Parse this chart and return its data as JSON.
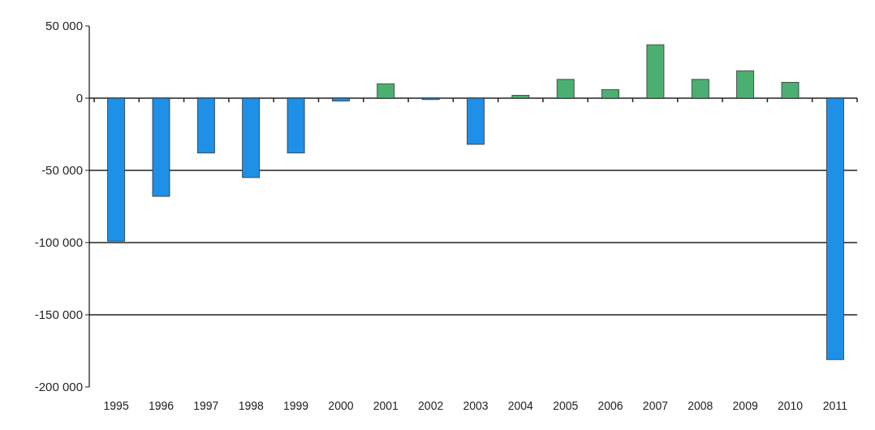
{
  "chart_data": {
    "type": "bar",
    "categories": [
      "1995",
      "1996",
      "1997",
      "1998",
      "1999",
      "2000",
      "2001",
      "2002",
      "2003",
      "2004",
      "2005",
      "2006",
      "2007",
      "2008",
      "2009",
      "2010",
      "2011"
    ],
    "values": [
      -99000,
      -68000,
      -38000,
      -55000,
      -38000,
      -2000,
      10000,
      -1000,
      -32000,
      2000,
      13000,
      6000,
      37000,
      13000,
      19000,
      11000,
      -181000
    ],
    "colors": [
      "#1e90e8",
      "#1e90e8",
      "#1e90e8",
      "#1e90e8",
      "#1e90e8",
      "#1e90e8",
      "#4caf72",
      "#1e90e8",
      "#1e90e8",
      "#4caf72",
      "#4caf72",
      "#4caf72",
      "#4caf72",
      "#4caf72",
      "#4caf72",
      "#4caf72",
      "#1e90e8"
    ],
    "ylim": [
      -200000,
      50000
    ],
    "yticks": [
      {
        "value": 50000,
        "label": "50 000"
      },
      {
        "value": 0,
        "label": "0"
      },
      {
        "value": -50000,
        "label": "-50 000"
      },
      {
        "value": -100000,
        "label": "-100 000"
      },
      {
        "value": -150000,
        "label": "-150 000"
      },
      {
        "value": -200000,
        "label": "-200 000"
      }
    ],
    "grid": "y"
  }
}
